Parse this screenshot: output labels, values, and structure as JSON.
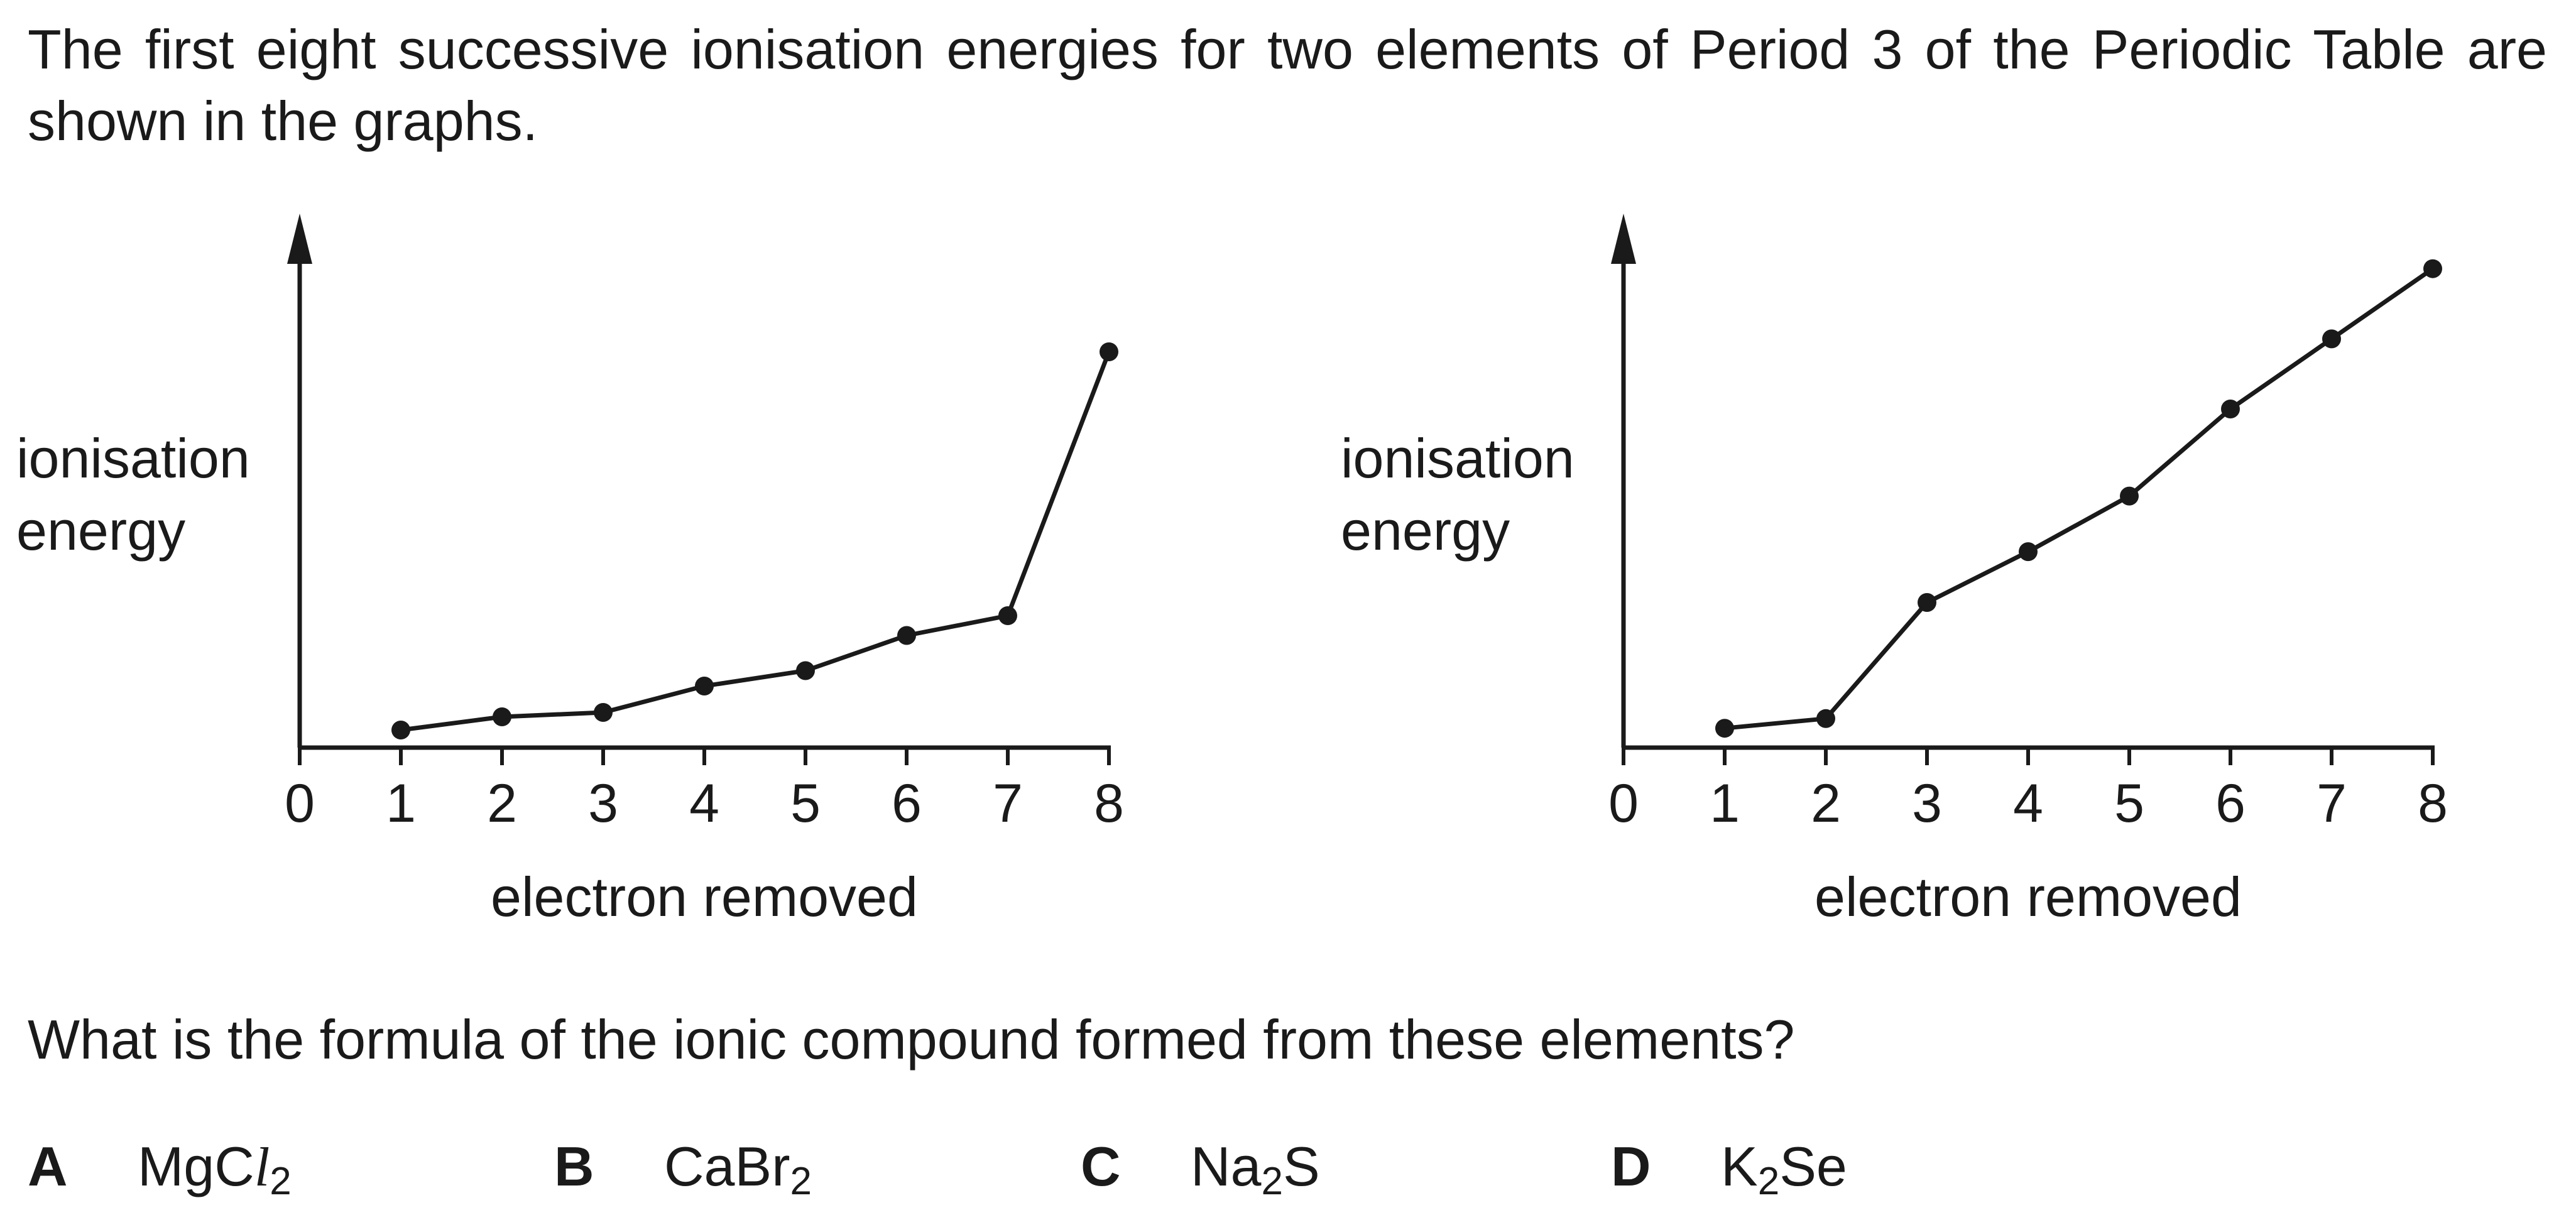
{
  "question": {
    "intro": "The first eight successive ionisation energies for two elements of Period 3 of the Periodic Table are shown in the graphs.",
    "prompt": "What is the formula of the ionic compound formed from these elements?"
  },
  "options": [
    {
      "letter": "A",
      "parts": [
        "Mg",
        "C",
        "l",
        "2",
        ""
      ]
    },
    {
      "letter": "B",
      "parts": [
        "CaBr",
        "",
        "",
        "2",
        ""
      ]
    },
    {
      "letter": "C",
      "parts": [
        "Na",
        "",
        "",
        "2",
        "S"
      ]
    },
    {
      "letter": "D",
      "parts": [
        "K",
        "",
        "",
        "2",
        "Se"
      ]
    }
  ],
  "chart_data": [
    {
      "type": "line",
      "title": "",
      "xlabel": "electron removed",
      "ylabel": "ionisation\nenergy",
      "x_ticks": [
        0,
        1,
        2,
        3,
        4,
        5,
        6,
        7,
        8
      ],
      "xlim": [
        0,
        8
      ],
      "ylim": [
        0,
        100
      ],
      "y_ticks_labeled": false,
      "grid": false,
      "series": [
        {
          "x": [
            1,
            2,
            3,
            4,
            5,
            6,
            7,
            8
          ],
          "y": [
            4,
            7,
            8,
            14,
            17.5,
            25.5,
            30,
            90
          ]
        }
      ]
    },
    {
      "type": "line",
      "title": "",
      "xlabel": "electron removed",
      "ylabel": "ionisation\nenergy",
      "x_ticks": [
        0,
        1,
        2,
        3,
        4,
        5,
        6,
        7,
        8
      ],
      "xlim": [
        0,
        8
      ],
      "ylim": [
        0,
        100
      ],
      "y_ticks_labeled": false,
      "grid": false,
      "series": [
        {
          "x": [
            1,
            2,
            3,
            4,
            5,
            6,
            7,
            8
          ],
          "y": [
            4,
            6,
            30,
            40.5,
            52,
            70,
            84.5,
            99
          ]
        }
      ]
    }
  ]
}
